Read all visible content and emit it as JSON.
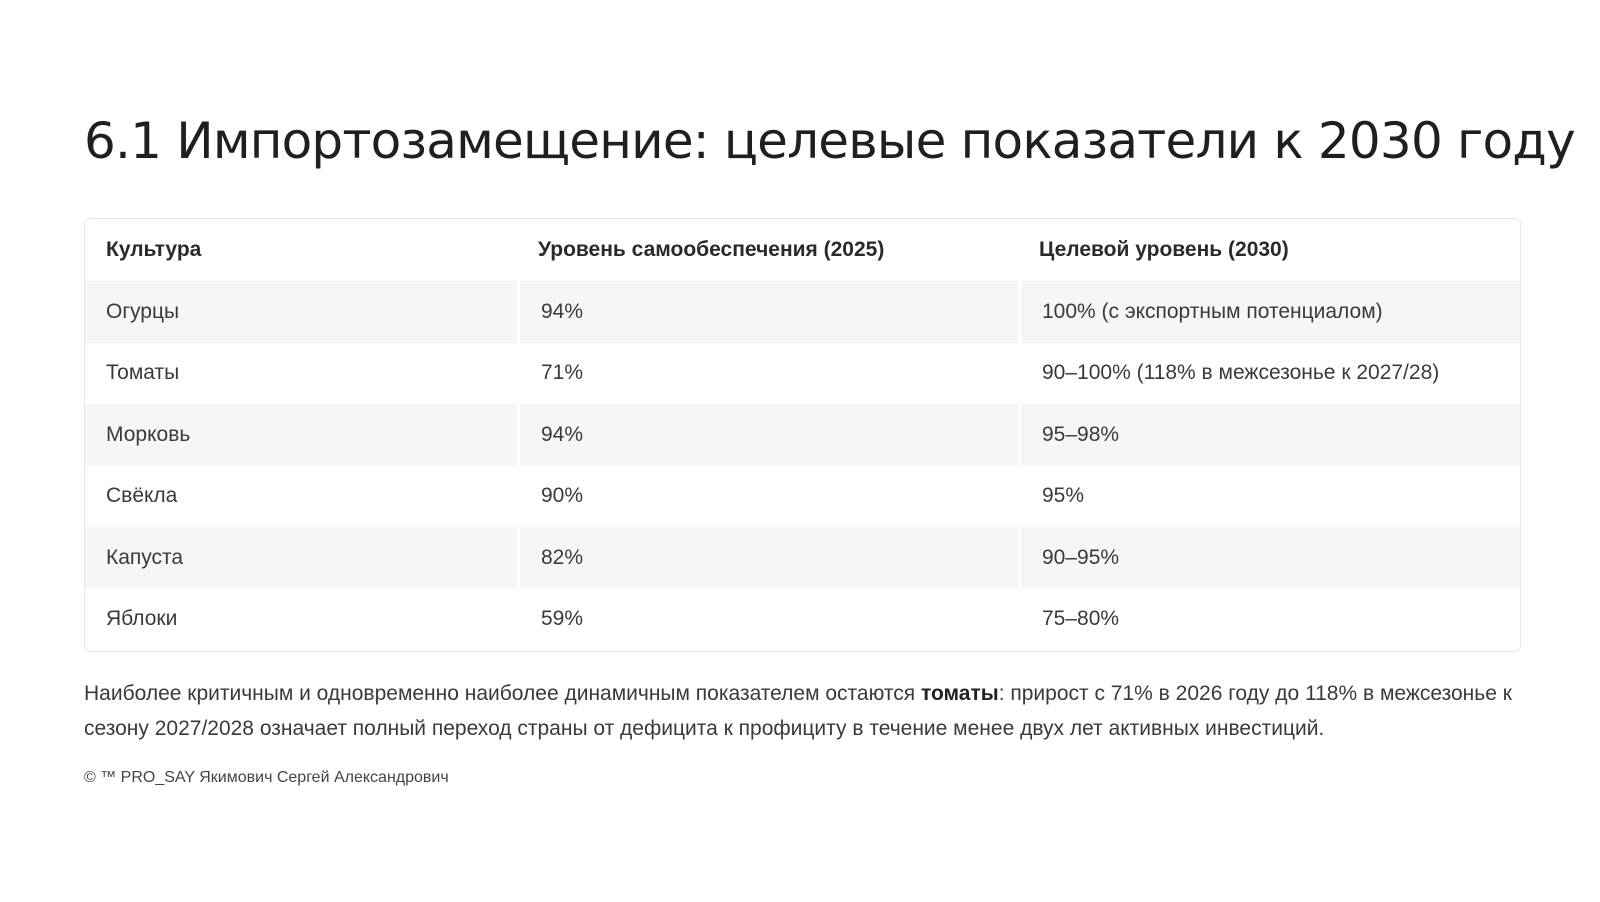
{
  "title": "6.1 Импортозамещение: целевые показатели к 2030 году",
  "table": {
    "headers": [
      "Культура",
      "Уровень самообеспечения (2025)",
      "Целевой уровень (2030)"
    ],
    "rows": [
      [
        "Огурцы",
        "94%",
        "100% (с экспортным потенциалом)"
      ],
      [
        "Томаты",
        "71%",
        "90–100% (118% в межсезонье к 2027/28)"
      ],
      [
        "Морковь",
        "94%",
        "95–98%"
      ],
      [
        "Свёкла",
        "90%",
        "95%"
      ],
      [
        "Капуста",
        "82%",
        "90–95%"
      ],
      [
        "Яблоки",
        "59%",
        "75–80%"
      ]
    ]
  },
  "summary": {
    "before": "Наиболее критичным и одновременно наиболее динамичным показателем остаются ",
    "emphasis": "томаты",
    "after": ": прирост с 71% в 2026 году до 118% в межсезонье к сезону 2027/2028 означает полный переход страны от дефицита к профициту в течение менее двух лет активных инвестиций."
  },
  "footer": "© ™ PRO_SAY Якимович Сергей Александрович",
  "colors": {
    "stripe": "#f6f6f7",
    "border": "#e6e6e6",
    "text": "#333333"
  }
}
